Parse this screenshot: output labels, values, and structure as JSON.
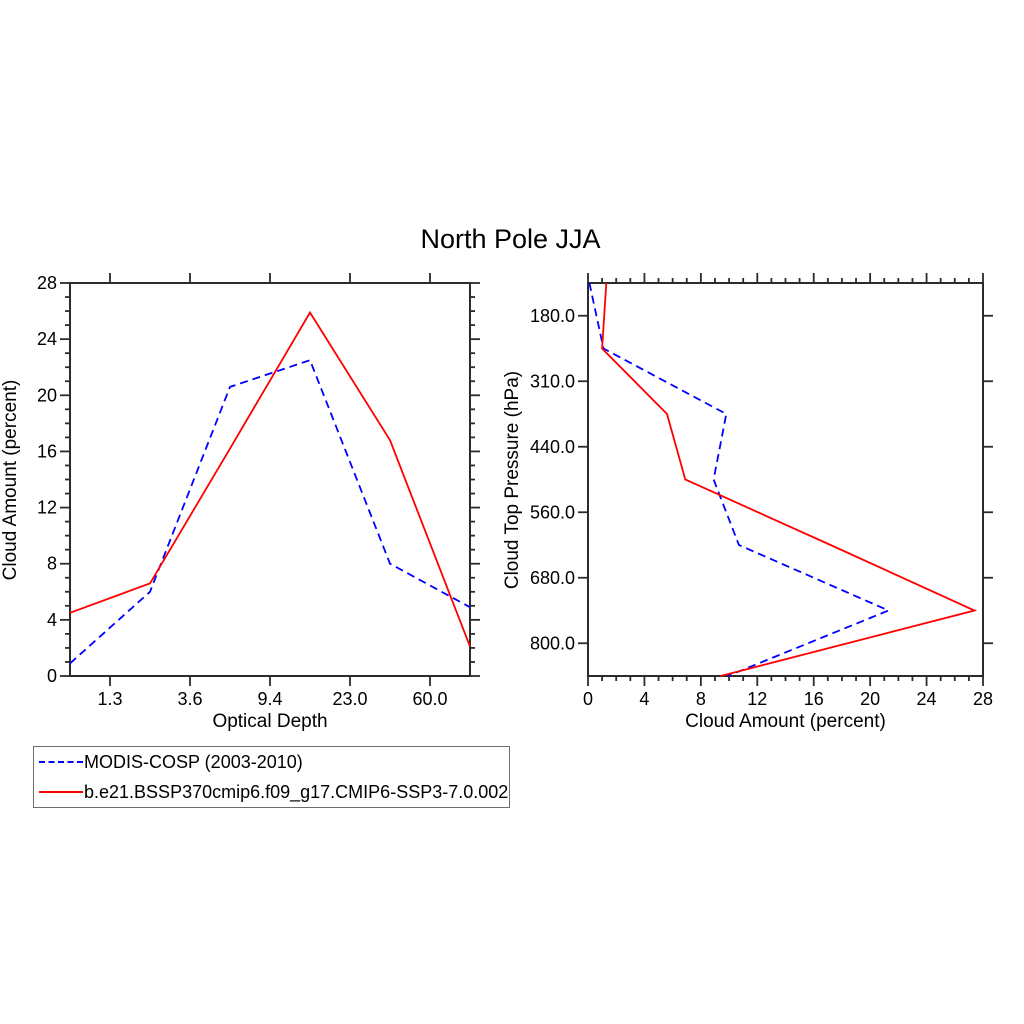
{
  "title": "North Pole JJA",
  "legend": {
    "items": [
      {
        "label": "MODIS-COSP (2003-2010)",
        "color": "#0000ff",
        "line_style": "dashed"
      },
      {
        "label": "b.e21.BSSP370cmip6.f09_g17.CMIP6-SSP3-7.0.002",
        "color": "#ff0000",
        "line_style": "solid"
      }
    ]
  },
  "colors": {
    "modis_blue": "#0000ff",
    "model_red": "#ff0000",
    "axis": "#2b2b2b"
  },
  "chart_data": [
    {
      "id": "optical-depth-panel",
      "type": "line",
      "title": "North Pole JJA",
      "xlabel": "Optical Depth",
      "ylabel": "Cloud Amount (percent)",
      "x_axis": {
        "tick_labels": [
          "1.3",
          "3.6",
          "9.4",
          "23.0",
          "60.0"
        ],
        "note": "6 data points plotted at optical-depth bin midpoints; ticks mark bin boundaries"
      },
      "y_axis": {
        "ticks": [
          0,
          4,
          8,
          12,
          16,
          20,
          24,
          28
        ],
        "minor_step": 1,
        "range": [
          0,
          28
        ]
      },
      "series": [
        {
          "name": "MODIS-COSP (2003-2010)",
          "color": "#0000ff",
          "style": "dashed",
          "values": [
            0.9,
            6.0,
            20.6,
            22.5,
            8.0,
            4.9
          ]
        },
        {
          "name": "b.e21.BSSP370cmip6.f09_g17.CMIP6-SSP3-7.0.002",
          "color": "#ff0000",
          "style": "solid",
          "values": [
            4.5,
            6.6,
            16.2,
            25.9,
            16.8,
            2.1
          ]
        }
      ]
    },
    {
      "id": "cloud-top-pressure-panel",
      "type": "line",
      "title": "",
      "xlabel": "Cloud Amount (percent)",
      "ylabel": "Cloud Top Pressure (hPa)",
      "x_axis": {
        "ticks": [
          0,
          4,
          8,
          12,
          16,
          20,
          24,
          28
        ],
        "minor_step": 1,
        "range": [
          0,
          28
        ]
      },
      "y_axis": {
        "tick_labels": [
          "180.0",
          "310.0",
          "440.0",
          "560.0",
          "680.0",
          "800.0"
        ],
        "note": "7 data points plotted at pressure bin midpoints top-to-bottom; ticks mark bin boundaries; pressure increases downward"
      },
      "series": [
        {
          "name": "MODIS-COSP (2003-2010)",
          "color": "#0000ff",
          "style": "dashed",
          "values": [
            0.1,
            1.1,
            9.8,
            8.9,
            10.7,
            21.3,
            9.9
          ]
        },
        {
          "name": "b.e21.BSSP370cmip6.f09_g17.CMIP6-SSP3-7.0.002",
          "color": "#ff0000",
          "style": "solid",
          "values": [
            1.3,
            1.0,
            5.6,
            6.9,
            17.2,
            27.4,
            9.4
          ]
        }
      ]
    }
  ]
}
